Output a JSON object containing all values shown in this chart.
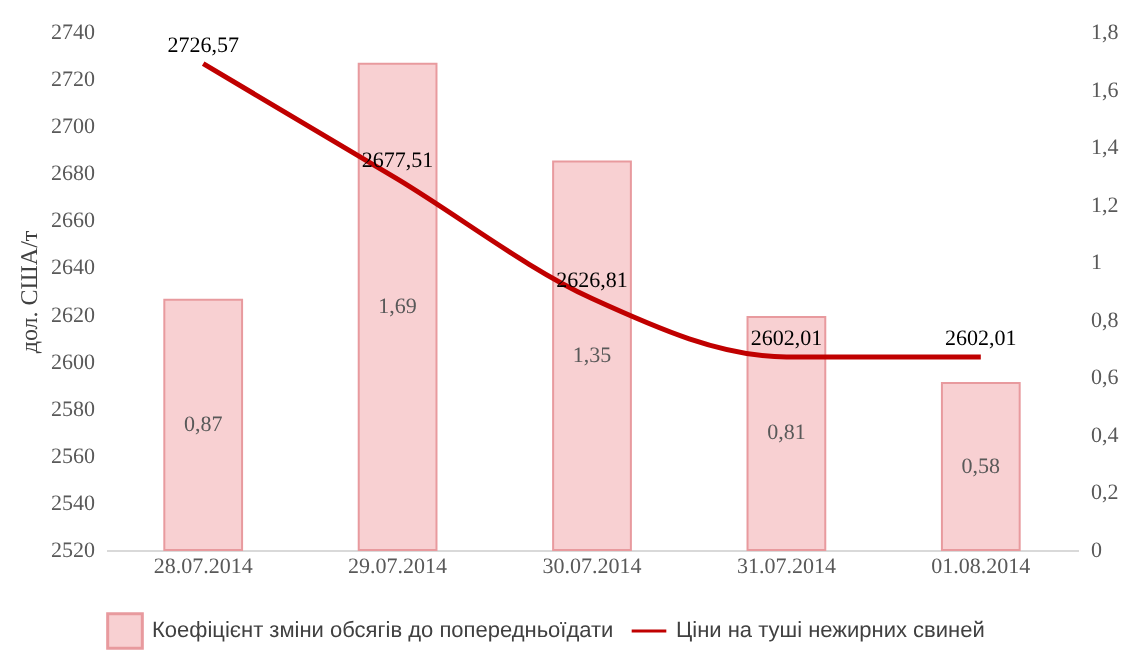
{
  "chart_data": {
    "type": "bar",
    "ylabel": "дол. США/т",
    "categories": [
      "28.07.2014",
      "29.07.2014",
      "30.07.2014",
      "31.07.2014",
      "01.08.2014"
    ],
    "series": [
      {
        "name": "Коефіцієнт зміни обсягів до попередньоїдати",
        "axis": "y2",
        "color": "#f8d0d2",
        "values": [
          0.87,
          1.69,
          1.35,
          0.81,
          0.58
        ],
        "value_labels": [
          "0,87",
          "1,69",
          "1,35",
          "0,81",
          "0,58"
        ]
      },
      {
        "name": "Ціни на туші нежирних свиней",
        "type": "line",
        "color": "#c00000",
        "values": [
          2726.57,
          2677.51,
          2626.81,
          2602.01,
          2602.01
        ],
        "value_labels": [
          "2726,57",
          "2677,51",
          "2626,81",
          "2602,01",
          "2602,01"
        ]
      }
    ],
    "ylim": [
      2520,
      2740
    ],
    "yticks": [
      2520,
      2540,
      2560,
      2580,
      2600,
      2620,
      2640,
      2660,
      2680,
      2700,
      2720,
      2740
    ],
    "y2lim": [
      0,
      1.8
    ],
    "y2ticks": [
      0,
      {
        "value": 0.2,
        "label": "0,2"
      },
      {
        "value": 0.4,
        "label": "0,4"
      },
      {
        "value": 0.6,
        "label": "0,6"
      },
      {
        "value": 0.8,
        "label": "0,8"
      },
      1,
      {
        "value": 1.2,
        "label": "1,2"
      },
      {
        "value": 1.4,
        "label": "1,4"
      },
      {
        "value": 1.6,
        "label": "1,6"
      },
      {
        "value": 1.8,
        "label": "1,8"
      }
    ],
    "legend": "bottom",
    "grid": false
  }
}
